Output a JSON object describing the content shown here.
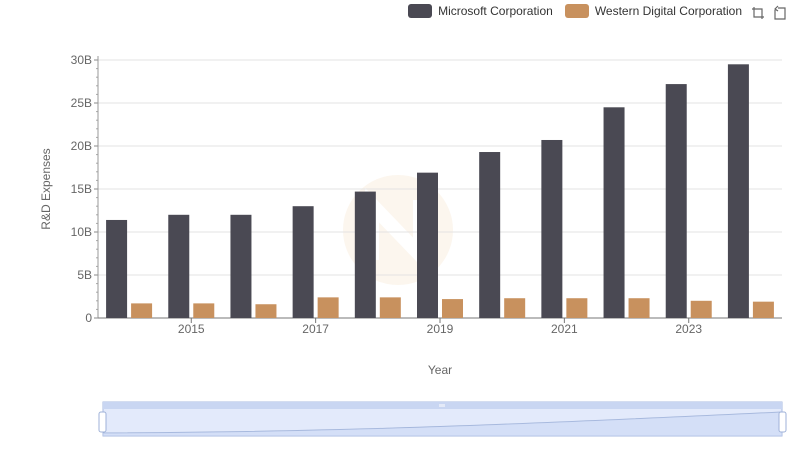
{
  "legend": {
    "items": [
      {
        "name": "Microsoft Corporation",
        "color": "#4a4953"
      },
      {
        "name": "Western Digital Corporation",
        "color": "#c8915e"
      }
    ]
  },
  "toolbox": {
    "icons": [
      "zoom-icon",
      "restore-icon"
    ]
  },
  "chart_data": {
    "type": "bar",
    "title": "",
    "xlabel": "Year",
    "ylabel": "R&D Expenses",
    "ylim": [
      0,
      30
    ],
    "y_unit": "B",
    "y_ticks": [
      "0",
      "5B",
      "10B",
      "15B",
      "20B",
      "25B",
      "30B"
    ],
    "categories": [
      "2014",
      "2015",
      "2016",
      "2017",
      "2018",
      "2019",
      "2020",
      "2021",
      "2022",
      "2023",
      "2024"
    ],
    "x_tick_labels": [
      "2015",
      "2017",
      "2019",
      "2021",
      "2023"
    ],
    "series": [
      {
        "name": "Microsoft Corporation",
        "color": "#4a4953",
        "values": [
          11.4,
          12.0,
          12.0,
          13.0,
          14.7,
          16.9,
          19.3,
          20.7,
          24.5,
          27.2,
          29.5
        ]
      },
      {
        "name": "Western Digital Corporation",
        "color": "#c8915e",
        "values": [
          1.7,
          1.7,
          1.6,
          2.4,
          2.4,
          2.2,
          2.3,
          2.3,
          2.3,
          2.0,
          1.9
        ]
      }
    ]
  }
}
